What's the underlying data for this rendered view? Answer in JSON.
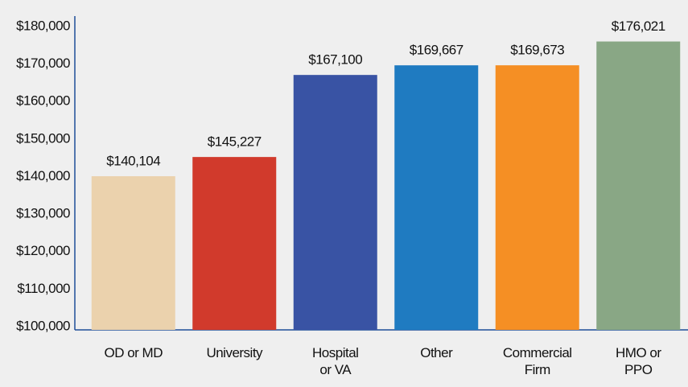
{
  "chart_data": {
    "type": "bar",
    "categories": [
      "OD or MD",
      "University",
      "Hospital\nor VA",
      "Other",
      "Commercial\nFirm",
      "HMO or\nPPO"
    ],
    "values": [
      140104,
      145227,
      167100,
      169667,
      169673,
      176021
    ],
    "value_labels": [
      "$140,104",
      "$145,227",
      "$167,100",
      "$169,667",
      "$169,673",
      "$176,021"
    ],
    "colors": [
      "#ebd2ad",
      "#d13a2c",
      "#3953a4",
      "#1f7bc1",
      "#f58f24",
      "#89a785"
    ],
    "ylim": [
      100000,
      180000
    ],
    "yticks": [
      {
        "value": 100000,
        "label": "$100,000"
      },
      {
        "value": 110000,
        "label": "$110,000"
      },
      {
        "value": 120000,
        "label": "$120,000"
      },
      {
        "value": 130000,
        "label": "$130,000"
      },
      {
        "value": 140000,
        "label": "$140,000"
      },
      {
        "value": 150000,
        "label": "$150,000"
      },
      {
        "value": 160000,
        "label": "$160,000"
      },
      {
        "value": 170000,
        "label": "$170,000"
      },
      {
        "value": 180000,
        "label": "$180,000"
      }
    ],
    "grid": false
  }
}
